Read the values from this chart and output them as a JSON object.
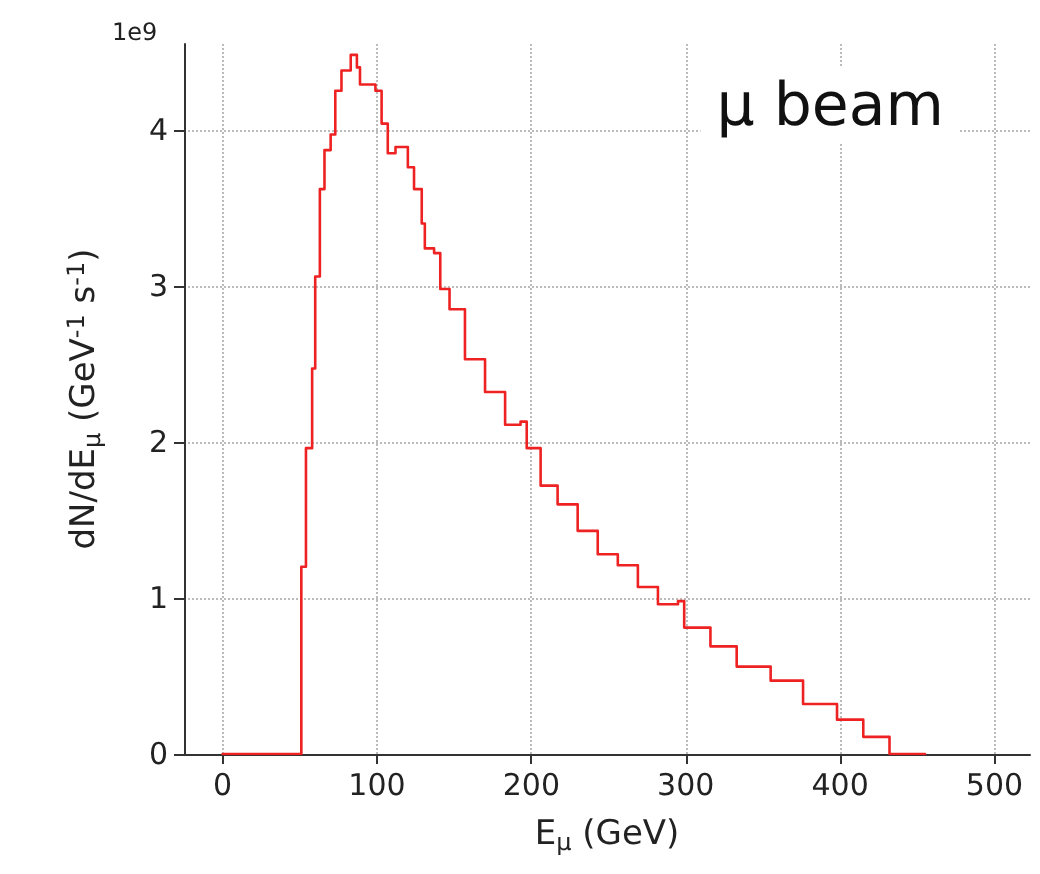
{
  "chart_data": {
    "type": "step",
    "title": "μ beam",
    "xlabel": "E$_{μ}$ (GeV)",
    "ylabel": "dN/dE$_{μ}$ (GeV$^{-1}$ s$^{-1}$)",
    "annotations": [
      "1e9"
    ],
    "x": [
      0,
      51,
      51,
      54,
      58,
      60,
      63,
      66,
      70,
      73,
      77,
      83,
      87,
      89,
      99,
      103,
      107,
      112,
      120,
      124,
      129,
      131,
      137,
      141,
      147,
      157,
      170,
      183,
      193,
      197,
      206,
      217,
      230,
      243,
      256,
      269,
      282,
      295,
      299,
      316,
      333,
      355,
      376,
      398,
      415,
      432,
      447,
      455
    ],
    "series": [
      {
        "color": "#ee2222",
        "values": [
          0,
          0,
          0.47,
          1.2,
          1.96,
          2.47,
          3.06,
          3.62,
          3.87,
          3.97,
          4.25,
          4.38,
          4.48,
          4.4,
          4.29,
          4.25,
          4.04,
          3.85,
          3.89,
          3.76,
          3.62,
          3.4,
          3.24,
          3.21,
          2.98,
          2.85,
          2.53,
          2.32,
          2.11,
          2.13,
          1.96,
          1.72,
          1.6,
          1.43,
          1.28,
          1.21,
          1.07,
          0.96,
          0.98,
          0.81,
          0.69,
          0.56,
          0.47,
          0.32,
          0.22,
          0.11,
          0,
          0
        ]
      }
    ],
    "xlim": [
      -25,
      523
    ],
    "xticks": [
      0,
      100,
      200,
      300,
      400,
      500
    ],
    "ylim": [
      0,
      4.55
    ],
    "yticks": [
      0,
      1,
      2,
      3,
      4
    ],
    "grid": true,
    "marker": "none",
    "line_style": "solid"
  }
}
